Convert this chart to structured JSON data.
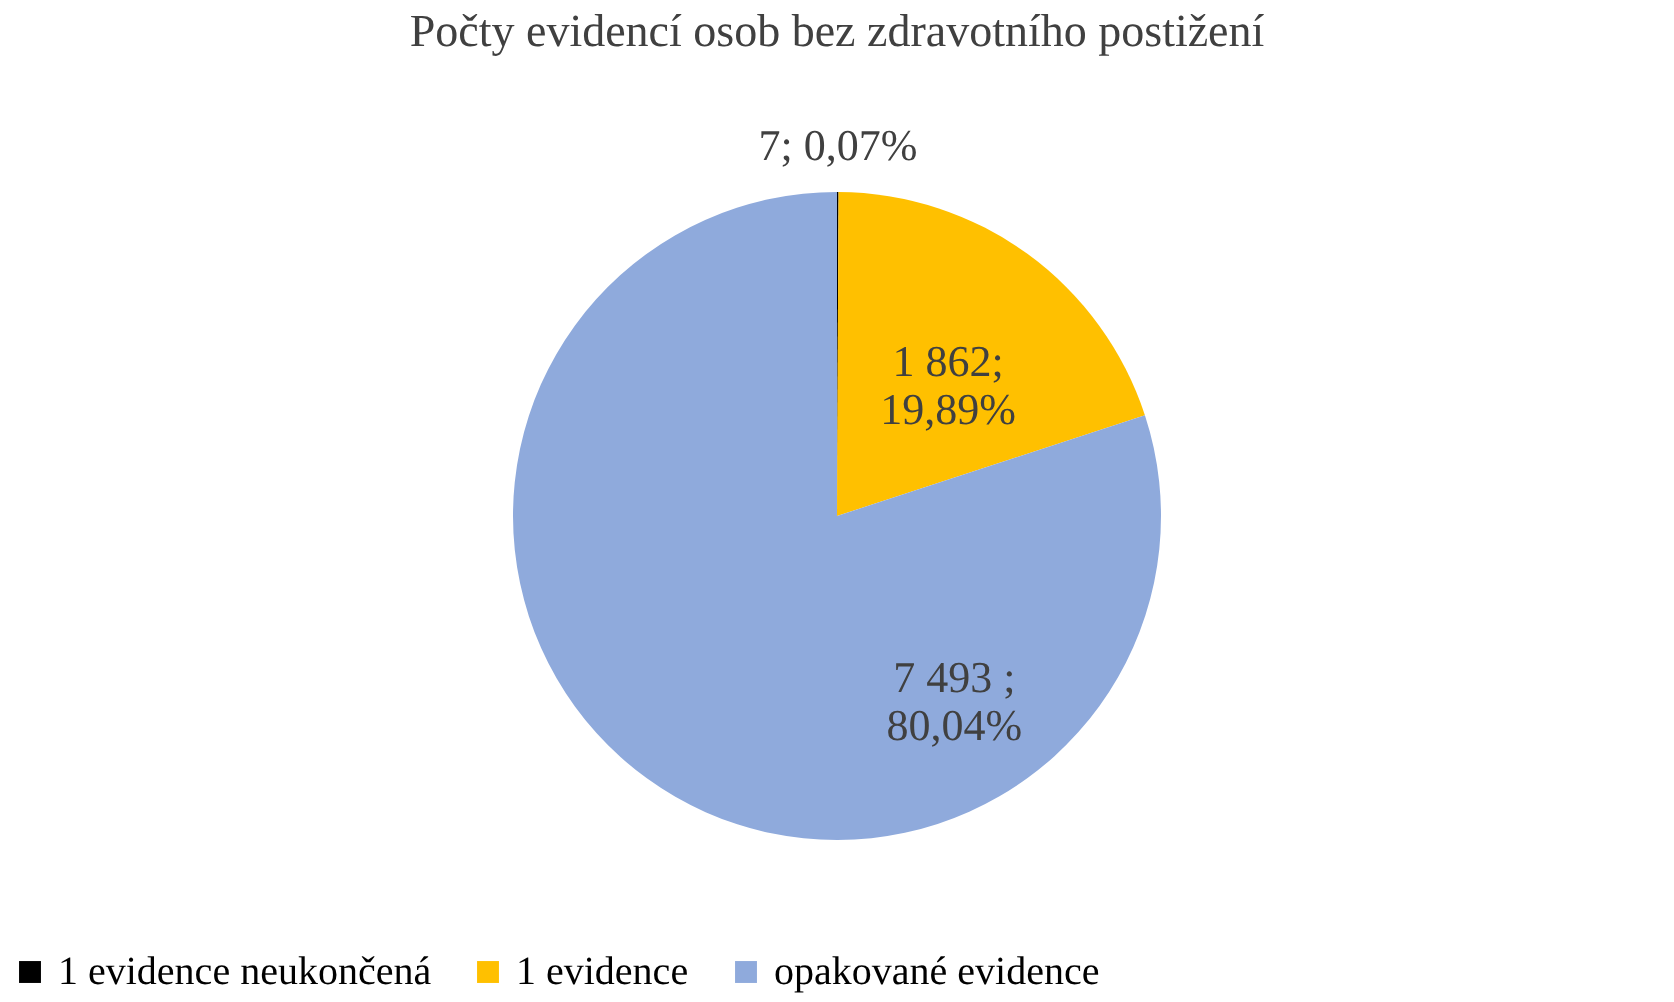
{
  "chart_data": {
    "type": "pie",
    "title": "Počty evidencí osob bez zdravotního postižení",
    "categories": [
      "1 evidence neukončená",
      "1 evidence",
      "opakované evidence"
    ],
    "values": [
      7,
      1862,
      7493
    ],
    "colors": [
      "#000000",
      "#ffc000",
      "#8faadc"
    ],
    "value_labels": [
      "7; 0,07%",
      "1 862;\n19,89%",
      "7 493 ;\n80,04%"
    ],
    "legend": "bottom"
  }
}
